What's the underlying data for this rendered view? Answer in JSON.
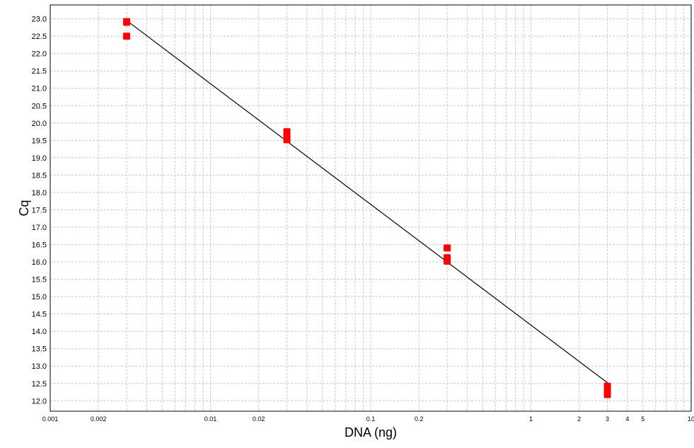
{
  "chart_data": {
    "type": "scatter",
    "title": "",
    "xlabel": "DNA (ng)",
    "ylabel": "Cq",
    "x_scale": "log",
    "xlim": [
      0.001,
      10
    ],
    "ylim": [
      11.7,
      23.4
    ],
    "grid": true,
    "x_ticks": [
      {
        "value": 0.001,
        "label": "0.001"
      },
      {
        "value": 0.002,
        "label": "0.002"
      },
      {
        "value": 0.01,
        "label": "0.01"
      },
      {
        "value": 0.02,
        "label": "0.02"
      },
      {
        "value": 0.1,
        "label": "0.1"
      },
      {
        "value": 0.2,
        "label": "0.2"
      },
      {
        "value": 1,
        "label": "1"
      },
      {
        "value": 2,
        "label": "2"
      },
      {
        "value": 3,
        "label": "3"
      },
      {
        "value": 4,
        "label": "4"
      },
      {
        "value": 5,
        "label": "5"
      },
      {
        "value": 10,
        "label": "10"
      }
    ],
    "y_ticks": [
      "12.0",
      "12.5",
      "13.0",
      "13.5",
      "14.0",
      "14.5",
      "15.0",
      "15.5",
      "16.0",
      "16.5",
      "17.0",
      "17.5",
      "18.0",
      "18.5",
      "19.0",
      "19.5",
      "20.0",
      "20.5",
      "21.0",
      "21.5",
      "22.0",
      "22.5",
      "23.0"
    ],
    "points": [
      {
        "x": 0.003,
        "y": 22.92
      },
      {
        "x": 0.003,
        "y": 22.9
      },
      {
        "x": 0.003,
        "y": 22.5
      },
      {
        "x": 0.03,
        "y": 19.75
      },
      {
        "x": 0.03,
        "y": 19.62
      },
      {
        "x": 0.03,
        "y": 19.52
      },
      {
        "x": 0.3,
        "y": 16.4
      },
      {
        "x": 0.3,
        "y": 16.12
      },
      {
        "x": 0.3,
        "y": 16.02
      },
      {
        "x": 3,
        "y": 12.42
      },
      {
        "x": 3,
        "y": 12.28
      },
      {
        "x": 3,
        "y": 12.18
      }
    ],
    "fit_line": {
      "x": [
        0.003,
        3
      ],
      "y": [
        22.95,
        12.52
      ]
    },
    "point_color": "#ff0000",
    "line_color": "#000000"
  }
}
